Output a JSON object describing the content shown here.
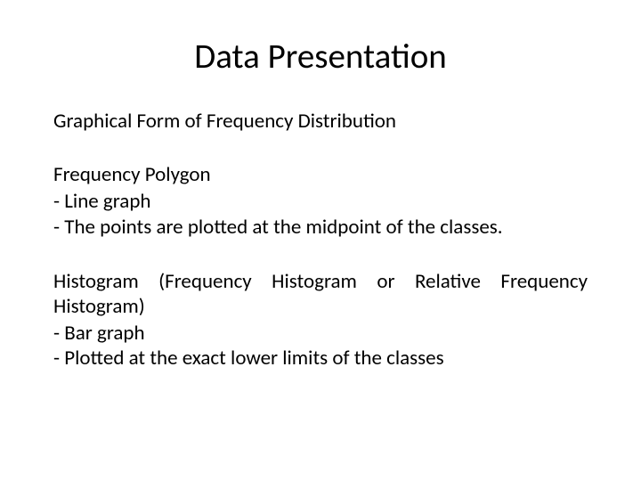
{
  "title": "Data Presentation",
  "subtitle": "Graphical Form of Frequency Distribution",
  "sections": [
    {
      "heading": "Frequency Polygon",
      "bullets": [
        "Line graph",
        "The points are plotted at the midpoint of the classes."
      ],
      "justified": false
    },
    {
      "heading": "Histogram (Frequency Histogram or Relative Frequency Histogram)",
      "bullets": [
        "Bar graph",
        "Plotted at the exact lower limits of the classes"
      ],
      "justified": true
    }
  ],
  "colors": {
    "background": "#ffffff",
    "text": "#000000"
  },
  "fonts": {
    "title_size": 39,
    "body_size": 23
  }
}
